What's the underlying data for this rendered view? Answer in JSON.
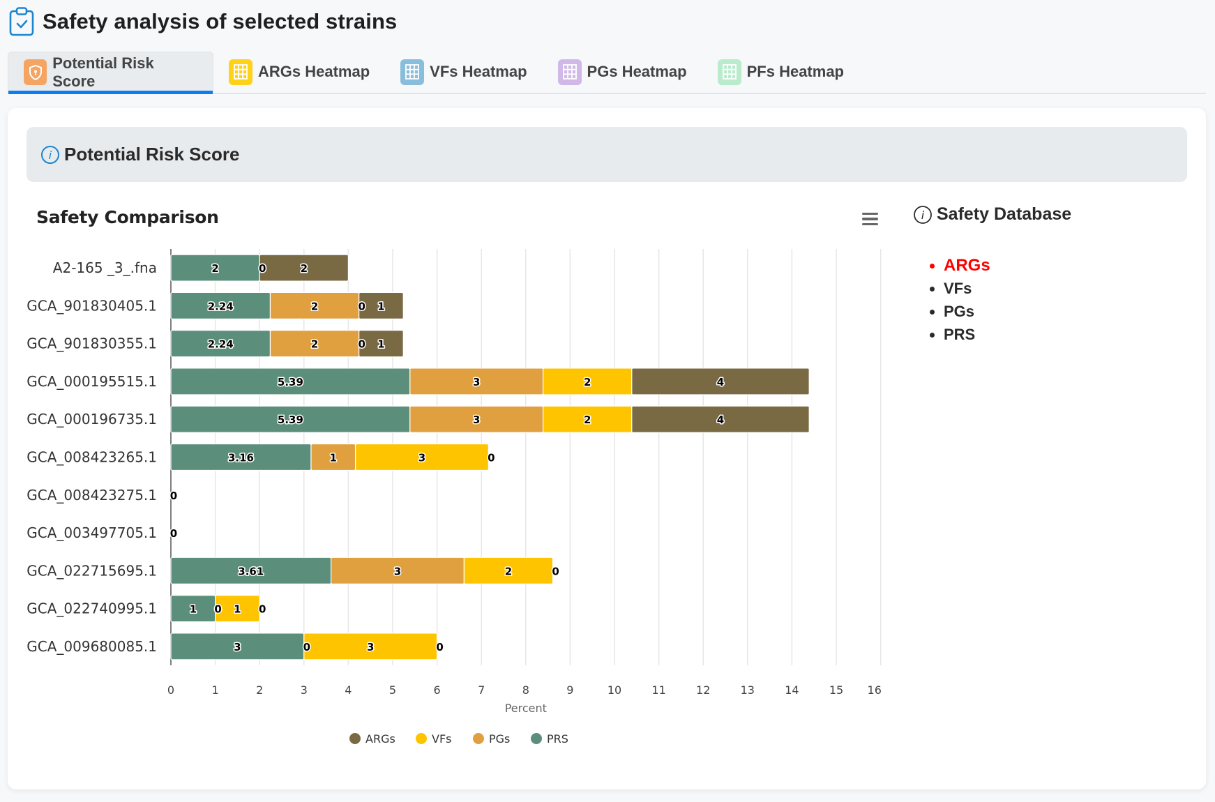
{
  "page": {
    "title": "Safety analysis of selected strains",
    "title_icon": "clipboard-check-icon"
  },
  "tabs": [
    {
      "label": "Potential Risk Score",
      "icon": "shield-lock-icon",
      "icon_color": "#f4a563",
      "active": true
    },
    {
      "label": "ARGs Heatmap",
      "icon": "grid-icon",
      "icon_color": "#ffd21a",
      "active": false
    },
    {
      "label": "VFs Heatmap",
      "icon": "grid-icon",
      "icon_color": "#88bddb",
      "active": false
    },
    {
      "label": "PGs Heatmap",
      "icon": "grid-icon",
      "icon_color": "#d0b8e8",
      "active": false
    },
    {
      "label": "PFs Heatmap",
      "icon": "grid-icon",
      "icon_color": "#b9ebcc",
      "active": false
    }
  ],
  "panel": {
    "title": "Potential Risk Score",
    "icon": "info-icon"
  },
  "side": {
    "title": "Safety Database",
    "icon": "info-icon",
    "items": [
      {
        "label": "ARGs",
        "highlight": true
      },
      {
        "label": "VFs",
        "highlight": false
      },
      {
        "label": "PGs",
        "highlight": false
      },
      {
        "label": "PRS",
        "highlight": false
      }
    ],
    "highlight_color": "#ff0000"
  },
  "chart_menu_icon": "hamburger-menu-icon",
  "colors": {
    "ARGs": "#7a6a44",
    "VFs": "#ffc400",
    "PGs": "#e0a040",
    "PRS": "#5b8f7c",
    "accent": "#0a7cf5"
  },
  "chart_data": {
    "type": "bar",
    "orientation": "horizontal",
    "stacked": true,
    "title": "Safety Comparison",
    "xlabel": "Percent",
    "ylabel": "",
    "xlim": [
      0,
      16
    ],
    "xticks": [
      0,
      1,
      2,
      3,
      4,
      5,
      6,
      7,
      8,
      9,
      10,
      11,
      12,
      13,
      14,
      15,
      16
    ],
    "grid": true,
    "legend_position": "bottom",
    "legend": [
      "ARGs",
      "VFs",
      "PGs",
      "PRS"
    ],
    "stack_order": [
      "PRS",
      "PGs",
      "VFs",
      "ARGs"
    ],
    "categories": [
      "A2-165 _3_.fna",
      "GCA_901830405.1",
      "GCA_901830355.1",
      "GCA_000195515.1",
      "GCA_000196735.1",
      "GCA_008423265.1",
      "GCA_008423275.1",
      "GCA_003497705.1",
      "GCA_022715695.1",
      "GCA_022740995.1",
      "GCA_009680085.1"
    ],
    "series": [
      {
        "name": "PRS",
        "values": [
          2,
          2.24,
          2.24,
          5.39,
          5.39,
          3.16,
          0,
          0,
          3.61,
          1,
          3
        ]
      },
      {
        "name": "PGs",
        "values": [
          0,
          2,
          2,
          3,
          3,
          1,
          0,
          0,
          3,
          0,
          0
        ]
      },
      {
        "name": "VFs",
        "values": [
          0,
          0,
          0,
          2,
          2,
          3,
          0,
          0,
          2,
          1,
          3
        ]
      },
      {
        "name": "ARGs",
        "values": [
          2,
          1,
          1,
          4,
          4,
          0,
          0,
          0,
          0,
          0,
          0
        ]
      }
    ],
    "visible_labels": [
      [
        "2",
        "0",
        "2"
      ],
      [
        "2.24",
        "2",
        "0",
        "1"
      ],
      [
        "2.24",
        "2",
        "0",
        "1"
      ],
      [
        "5.39",
        "3",
        "2",
        "4"
      ],
      [
        "5.39",
        "3",
        "2",
        "4"
      ],
      [
        "3.16",
        "1",
        "3",
        "0"
      ],
      [
        "0"
      ],
      [
        "0"
      ],
      [
        "3.61",
        "3",
        "2",
        "0"
      ],
      [
        "1",
        "0",
        "1",
        "0"
      ],
      [
        "3",
        "0",
        "3",
        "0"
      ]
    ]
  }
}
